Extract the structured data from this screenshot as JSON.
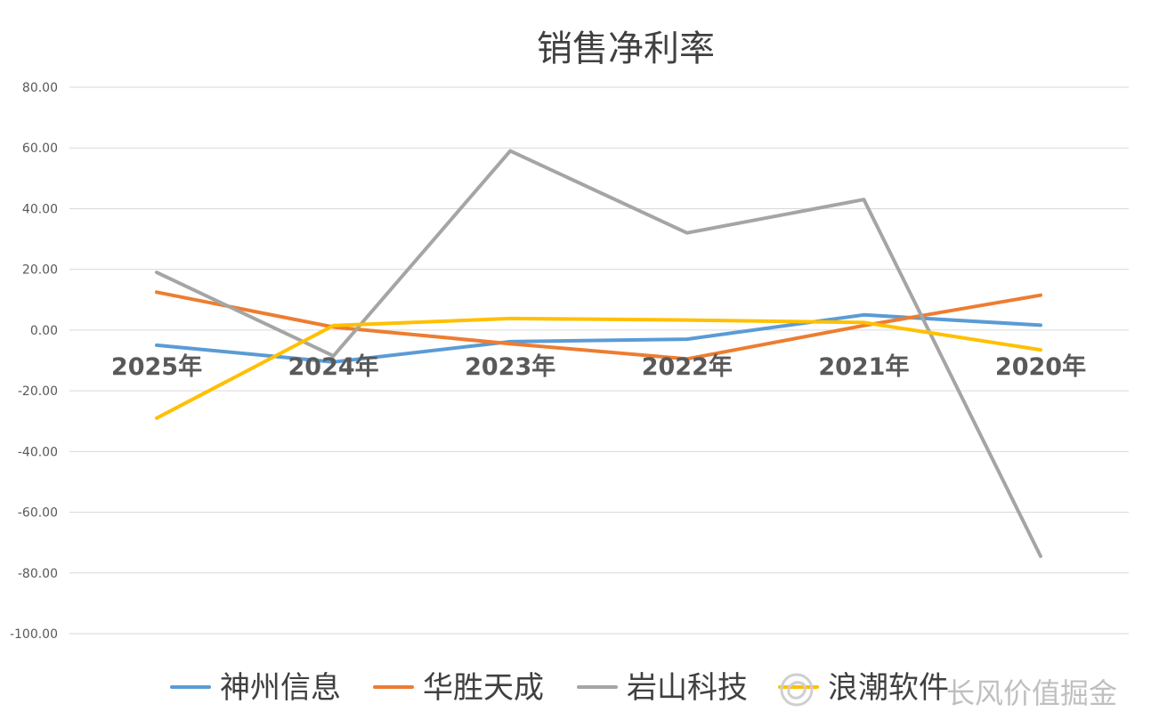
{
  "chart_data": {
    "type": "line",
    "title": "销售净利率",
    "categories": [
      "2025年",
      "2024年",
      "2023年",
      "2022年",
      "2021年",
      "2020年"
    ],
    "ylim": [
      -100,
      80
    ],
    "yticks": [
      "80.00",
      "60.00",
      "40.00",
      "20.00",
      "0.00",
      "-20.00",
      "-40.00",
      "-60.00",
      "-80.00",
      "-100.00"
    ],
    "grid": true,
    "legend_position": "bottom",
    "series": [
      {
        "name": "神州信息",
        "color": "#5B9BD5",
        "values": [
          -5.0,
          -10.5,
          -3.8,
          -3.0,
          5.0,
          1.6
        ]
      },
      {
        "name": "华胜天成",
        "color": "#ED7D31",
        "values": [
          12.5,
          1.0,
          -4.5,
          -9.5,
          1.5,
          11.5
        ]
      },
      {
        "name": "岩山科技",
        "color": "#A5A5A5",
        "values": [
          19.0,
          -8.5,
          59.0,
          32.0,
          43.0,
          -74.5
        ]
      },
      {
        "name": "浪潮软件",
        "color": "#FFC000",
        "values": [
          -29.0,
          1.5,
          3.8,
          3.3,
          2.5,
          -6.5
        ]
      }
    ]
  },
  "watermark": {
    "text": "长风价值掘金",
    "icon": "snowball-logo-icon"
  }
}
